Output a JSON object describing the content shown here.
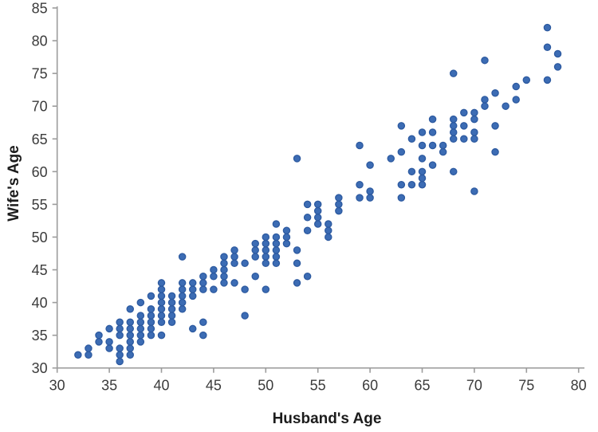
{
  "chart": {
    "background": "#ffffff",
    "axis_color": "#9c9c9c",
    "tick_label_color": "#3b3b3b",
    "title_color": "#1c1c1c",
    "marker_fill": "#3c6cb4",
    "marker_stroke": "#2d5aa0",
    "x_axis": {
      "label": "Husband's Age",
      "ticks": [
        30,
        35,
        40,
        45,
        50,
        55,
        60,
        65,
        70,
        75,
        80
      ]
    },
    "y_axis": {
      "label": "Wife's Age",
      "ticks": [
        30,
        35,
        40,
        45,
        50,
        55,
        60,
        65,
        70,
        75,
        80,
        85
      ]
    }
  },
  "chart_data": {
    "type": "scatter",
    "title": "",
    "xlabel": "Husband's Age",
    "ylabel": "Wife's Age",
    "xlim": [
      30,
      80
    ],
    "ylim": [
      30,
      85
    ],
    "grid": false,
    "legend": null,
    "points": [
      [
        32,
        32
      ],
      [
        33,
        32
      ],
      [
        33,
        33
      ],
      [
        34,
        34
      ],
      [
        34,
        35
      ],
      [
        35,
        33
      ],
      [
        35,
        34
      ],
      [
        35,
        36
      ],
      [
        36,
        31
      ],
      [
        36,
        32
      ],
      [
        36,
        33
      ],
      [
        36,
        35
      ],
      [
        36,
        36
      ],
      [
        36,
        37
      ],
      [
        37,
        32
      ],
      [
        37,
        33
      ],
      [
        37,
        34
      ],
      [
        37,
        35
      ],
      [
        37,
        36
      ],
      [
        37,
        37
      ],
      [
        37,
        39
      ],
      [
        38,
        34
      ],
      [
        38,
        35
      ],
      [
        38,
        36
      ],
      [
        38,
        37
      ],
      [
        38,
        38
      ],
      [
        38,
        40
      ],
      [
        39,
        35
      ],
      [
        39,
        36
      ],
      [
        39,
        37
      ],
      [
        39,
        38
      ],
      [
        39,
        39
      ],
      [
        39,
        41
      ],
      [
        40,
        35
      ],
      [
        40,
        37
      ],
      [
        40,
        38
      ],
      [
        40,
        39
      ],
      [
        40,
        40
      ],
      [
        40,
        41
      ],
      [
        40,
        42
      ],
      [
        40,
        43
      ],
      [
        41,
        37
      ],
      [
        41,
        38
      ],
      [
        41,
        39
      ],
      [
        41,
        40
      ],
      [
        41,
        41
      ],
      [
        42,
        39
      ],
      [
        42,
        40
      ],
      [
        42,
        41
      ],
      [
        42,
        42
      ],
      [
        42,
        43
      ],
      [
        42,
        47
      ],
      [
        43,
        36
      ],
      [
        43,
        41
      ],
      [
        43,
        42
      ],
      [
        43,
        43
      ],
      [
        44,
        35
      ],
      [
        44,
        37
      ],
      [
        44,
        42
      ],
      [
        44,
        43
      ],
      [
        44,
        44
      ],
      [
        45,
        42
      ],
      [
        45,
        44
      ],
      [
        45,
        45
      ],
      [
        46,
        43
      ],
      [
        46,
        44
      ],
      [
        46,
        45
      ],
      [
        46,
        46
      ],
      [
        46,
        47
      ],
      [
        47,
        43
      ],
      [
        47,
        46
      ],
      [
        47,
        47
      ],
      [
        47,
        48
      ],
      [
        48,
        38
      ],
      [
        48,
        42
      ],
      [
        48,
        46
      ],
      [
        49,
        44
      ],
      [
        49,
        47
      ],
      [
        49,
        48
      ],
      [
        49,
        49
      ],
      [
        50,
        42
      ],
      [
        50,
        46
      ],
      [
        50,
        47
      ],
      [
        50,
        48
      ],
      [
        50,
        49
      ],
      [
        50,
        50
      ],
      [
        51,
        46
      ],
      [
        51,
        47
      ],
      [
        51,
        48
      ],
      [
        51,
        49
      ],
      [
        51,
        50
      ],
      [
        51,
        52
      ],
      [
        52,
        49
      ],
      [
        52,
        50
      ],
      [
        52,
        51
      ],
      [
        53,
        43
      ],
      [
        53,
        46
      ],
      [
        53,
        48
      ],
      [
        53,
        62
      ],
      [
        54,
        44
      ],
      [
        54,
        51
      ],
      [
        54,
        53
      ],
      [
        54,
        55
      ],
      [
        55,
        52
      ],
      [
        55,
        53
      ],
      [
        55,
        54
      ],
      [
        55,
        55
      ],
      [
        56,
        50
      ],
      [
        56,
        51
      ],
      [
        56,
        52
      ],
      [
        57,
        54
      ],
      [
        57,
        55
      ],
      [
        57,
        56
      ],
      [
        59,
        56
      ],
      [
        59,
        58
      ],
      [
        59,
        64
      ],
      [
        60,
        56
      ],
      [
        60,
        57
      ],
      [
        60,
        61
      ],
      [
        62,
        62
      ],
      [
        63,
        56
      ],
      [
        63,
        58
      ],
      [
        63,
        63
      ],
      [
        63,
        67
      ],
      [
        64,
        58
      ],
      [
        64,
        60
      ],
      [
        64,
        65
      ],
      [
        65,
        58
      ],
      [
        65,
        59
      ],
      [
        65,
        60
      ],
      [
        65,
        62
      ],
      [
        65,
        64
      ],
      [
        65,
        66
      ],
      [
        66,
        61
      ],
      [
        66,
        64
      ],
      [
        66,
        66
      ],
      [
        66,
        68
      ],
      [
        67,
        63
      ],
      [
        67,
        64
      ],
      [
        68,
        60
      ],
      [
        68,
        65
      ],
      [
        68,
        66
      ],
      [
        68,
        67
      ],
      [
        68,
        68
      ],
      [
        68,
        75
      ],
      [
        69,
        65
      ],
      [
        69,
        67
      ],
      [
        69,
        69
      ],
      [
        70,
        57
      ],
      [
        70,
        65
      ],
      [
        70,
        66
      ],
      [
        70,
        68
      ],
      [
        70,
        69
      ],
      [
        71,
        70
      ],
      [
        71,
        71
      ],
      [
        71,
        77
      ],
      [
        72,
        63
      ],
      [
        72,
        67
      ],
      [
        72,
        72
      ],
      [
        73,
        70
      ],
      [
        74,
        71
      ],
      [
        74,
        73
      ],
      [
        75,
        74
      ],
      [
        77,
        74
      ],
      [
        77,
        79
      ],
      [
        77,
        82
      ],
      [
        78,
        76
      ],
      [
        78,
        78
      ]
    ]
  }
}
